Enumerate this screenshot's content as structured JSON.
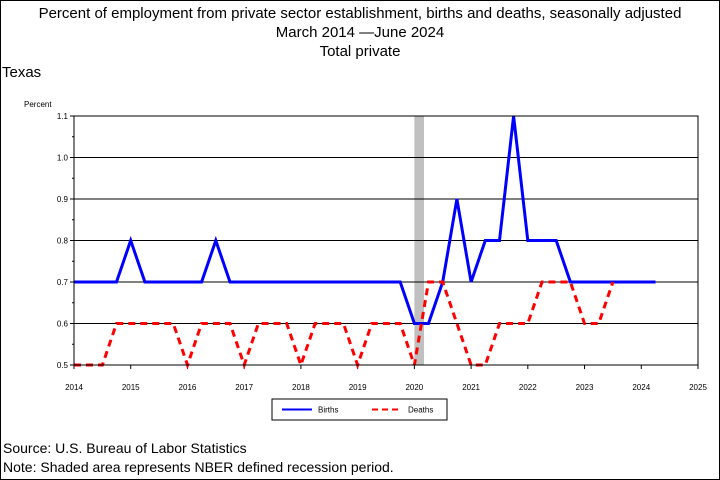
{
  "titles": {
    "line1": "Percent of employment from private sector establishment, births and deaths, seasonally adjusted",
    "line2": "March 2014 —June 2024",
    "line3": "Total private"
  },
  "region": "Texas",
  "footer": {
    "source": "Source: U.S. Bureau of Labor Statistics",
    "note": "Note: Shaded area represents NBER defined recession period."
  },
  "chart_data": {
    "type": "line",
    "ylabel": "Percent",
    "xlabel": "",
    "ylim": [
      0.5,
      1.1
    ],
    "xlim": [
      2014,
      2025
    ],
    "yticks": [
      "0.5",
      "0.6",
      "0.7",
      "0.8",
      "0.9",
      "1.0",
      "1.1"
    ],
    "xticks": [
      "2014",
      "2015",
      "2016",
      "2017",
      "2018",
      "2019",
      "2020",
      "2021",
      "2022",
      "2023",
      "2024",
      "2025"
    ],
    "grid": true,
    "legend_position": "bottom-center",
    "recession": [
      2020.0,
      2020.17
    ],
    "series": [
      {
        "name": "Births",
        "color": "#0000ff",
        "dash": "solid",
        "points": [
          [
            2014.0,
            0.7
          ],
          [
            2014.25,
            0.7
          ],
          [
            2014.5,
            0.7
          ],
          [
            2014.75,
            0.7
          ],
          [
            2015.0,
            0.8
          ],
          [
            2015.25,
            0.7
          ],
          [
            2015.5,
            0.7
          ],
          [
            2015.75,
            0.7
          ],
          [
            2016.0,
            0.7
          ],
          [
            2016.25,
            0.7
          ],
          [
            2016.5,
            0.8
          ],
          [
            2016.75,
            0.7
          ],
          [
            2017.0,
            0.7
          ],
          [
            2017.25,
            0.7
          ],
          [
            2017.5,
            0.7
          ],
          [
            2017.75,
            0.7
          ],
          [
            2018.0,
            0.7
          ],
          [
            2018.25,
            0.7
          ],
          [
            2018.5,
            0.7
          ],
          [
            2018.75,
            0.7
          ],
          [
            2019.0,
            0.7
          ],
          [
            2019.25,
            0.7
          ],
          [
            2019.5,
            0.7
          ],
          [
            2019.75,
            0.7
          ],
          [
            2020.0,
            0.6
          ],
          [
            2020.25,
            0.6
          ],
          [
            2020.5,
            0.7
          ],
          [
            2020.75,
            0.9
          ],
          [
            2021.0,
            0.7
          ],
          [
            2021.25,
            0.8
          ],
          [
            2021.5,
            0.8
          ],
          [
            2021.75,
            1.1
          ],
          [
            2022.0,
            0.8
          ],
          [
            2022.25,
            0.8
          ],
          [
            2022.5,
            0.8
          ],
          [
            2022.75,
            0.7
          ],
          [
            2023.0,
            0.7
          ],
          [
            2023.25,
            0.7
          ],
          [
            2023.5,
            0.7
          ],
          [
            2023.75,
            0.7
          ],
          [
            2024.0,
            0.7
          ],
          [
            2024.25,
            0.7
          ]
        ]
      },
      {
        "name": "Deaths",
        "color": "#ff0000",
        "dash": "dashed",
        "points": [
          [
            2014.0,
            0.5
          ],
          [
            2014.25,
            0.5
          ],
          [
            2014.5,
            0.5
          ],
          [
            2014.75,
            0.6
          ],
          [
            2015.0,
            0.6
          ],
          [
            2015.25,
            0.6
          ],
          [
            2015.5,
            0.6
          ],
          [
            2015.75,
            0.6
          ],
          [
            2016.0,
            0.5
          ],
          [
            2016.25,
            0.6
          ],
          [
            2016.5,
            0.6
          ],
          [
            2016.75,
            0.6
          ],
          [
            2017.0,
            0.5
          ],
          [
            2017.25,
            0.6
          ],
          [
            2017.5,
            0.6
          ],
          [
            2017.75,
            0.6
          ],
          [
            2018.0,
            0.5
          ],
          [
            2018.25,
            0.6
          ],
          [
            2018.5,
            0.6
          ],
          [
            2018.75,
            0.6
          ],
          [
            2019.0,
            0.5
          ],
          [
            2019.25,
            0.6
          ],
          [
            2019.5,
            0.6
          ],
          [
            2019.75,
            0.6
          ],
          [
            2020.0,
            0.5
          ],
          [
            2020.25,
            0.7
          ],
          [
            2020.5,
            0.7
          ],
          [
            2020.75,
            0.6
          ],
          [
            2021.0,
            0.5
          ],
          [
            2021.25,
            0.5
          ],
          [
            2021.5,
            0.6
          ],
          [
            2021.75,
            0.6
          ],
          [
            2022.0,
            0.6
          ],
          [
            2022.25,
            0.7
          ],
          [
            2022.5,
            0.7
          ],
          [
            2022.75,
            0.7
          ],
          [
            2023.0,
            0.6
          ],
          [
            2023.25,
            0.6
          ],
          [
            2023.5,
            0.7
          ]
        ]
      }
    ]
  }
}
